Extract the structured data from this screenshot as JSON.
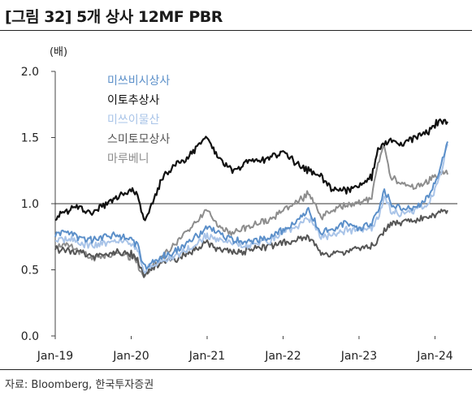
{
  "title": "[그림 32] 5개 상사 12MF PBR",
  "source": "자료: Bloomberg, 한국투자증권",
  "chart_data": {
    "type": "line",
    "title": "[그림 32] 5개 상사 12MF PBR",
    "ylabel": "(배)",
    "ylim": [
      0.0,
      2.0
    ],
    "yticks": [
      "0.0",
      "0.5",
      "1.0",
      "1.5",
      "2.0"
    ],
    "xlim": [
      "2019-01",
      "2024-03"
    ],
    "xticks": [
      "Jan-19",
      "Jan-20",
      "Jan-21",
      "Jan-22",
      "Jan-23",
      "Jan-24"
    ],
    "reference_line": 1.0,
    "grid": false,
    "legend_position": "top-left",
    "x": [
      "2019-01",
      "2019-03",
      "2019-05",
      "2019-07",
      "2019-09",
      "2019-11",
      "2020-01",
      "2020-02",
      "2020-03",
      "2020-04",
      "2020-06",
      "2020-08",
      "2020-10",
      "2020-12",
      "2021-01",
      "2021-02",
      "2021-03",
      "2021-05",
      "2021-07",
      "2021-09",
      "2021-11",
      "2022-01",
      "2022-03",
      "2022-05",
      "2022-07",
      "2022-09",
      "2022-11",
      "2023-01",
      "2023-03",
      "2023-04",
      "2023-05",
      "2023-06",
      "2023-08",
      "2023-10",
      "2023-12",
      "2024-01",
      "2024-02",
      "2024-03"
    ],
    "series": [
      {
        "name": "미쓰비시상사",
        "color": "#5b8fc9",
        "values": [
          0.77,
          0.79,
          0.74,
          0.72,
          0.75,
          0.76,
          0.72,
          0.68,
          0.52,
          0.55,
          0.6,
          0.64,
          0.7,
          0.78,
          0.82,
          0.8,
          0.76,
          0.73,
          0.7,
          0.72,
          0.75,
          0.8,
          0.85,
          0.95,
          0.78,
          0.8,
          0.85,
          0.82,
          0.85,
          0.95,
          1.1,
          1.0,
          0.95,
          0.98,
          1.05,
          1.15,
          1.3,
          1.47
        ]
      },
      {
        "name": "이토추상사",
        "color": "#111111",
        "values": [
          0.9,
          0.95,
          0.97,
          0.92,
          1.0,
          1.05,
          1.1,
          1.08,
          0.87,
          0.95,
          1.2,
          1.3,
          1.35,
          1.45,
          1.5,
          1.4,
          1.35,
          1.25,
          1.3,
          1.32,
          1.35,
          1.4,
          1.3,
          1.25,
          1.2,
          1.1,
          1.1,
          1.15,
          1.2,
          1.4,
          1.45,
          1.48,
          1.45,
          1.5,
          1.55,
          1.6,
          1.63,
          1.62
        ]
      },
      {
        "name": "미쓰이물산",
        "color": "#a9c4e8",
        "values": [
          0.72,
          0.74,
          0.7,
          0.68,
          0.7,
          0.72,
          0.7,
          0.65,
          0.48,
          0.52,
          0.56,
          0.6,
          0.66,
          0.72,
          0.76,
          0.74,
          0.72,
          0.7,
          0.68,
          0.7,
          0.72,
          0.78,
          0.82,
          0.9,
          0.75,
          0.76,
          0.8,
          0.8,
          0.82,
          0.9,
          1.05,
          0.95,
          0.92,
          0.95,
          1.0,
          1.1,
          1.25,
          1.45
        ]
      },
      {
        "name": "스미토모상사",
        "color": "#555555",
        "values": [
          0.66,
          0.65,
          0.63,
          0.6,
          0.62,
          0.63,
          0.62,
          0.58,
          0.45,
          0.5,
          0.55,
          0.58,
          0.62,
          0.68,
          0.7,
          0.68,
          0.66,
          0.63,
          0.64,
          0.66,
          0.68,
          0.7,
          0.72,
          0.75,
          0.62,
          0.62,
          0.64,
          0.66,
          0.68,
          0.72,
          0.8,
          0.85,
          0.86,
          0.88,
          0.9,
          0.92,
          0.93,
          0.95
        ]
      },
      {
        "name": "마루베니",
        "color": "#8d8d8d",
        "values": [
          0.68,
          0.68,
          0.64,
          0.58,
          0.6,
          0.62,
          0.6,
          0.55,
          0.42,
          0.5,
          0.6,
          0.7,
          0.8,
          0.9,
          0.95,
          0.88,
          0.82,
          0.78,
          0.82,
          0.85,
          0.88,
          0.95,
          1.0,
          1.08,
          0.9,
          0.95,
          1.0,
          1.0,
          1.05,
          1.3,
          1.45,
          1.2,
          1.15,
          1.12,
          1.18,
          1.2,
          1.25,
          1.22
        ]
      }
    ]
  }
}
